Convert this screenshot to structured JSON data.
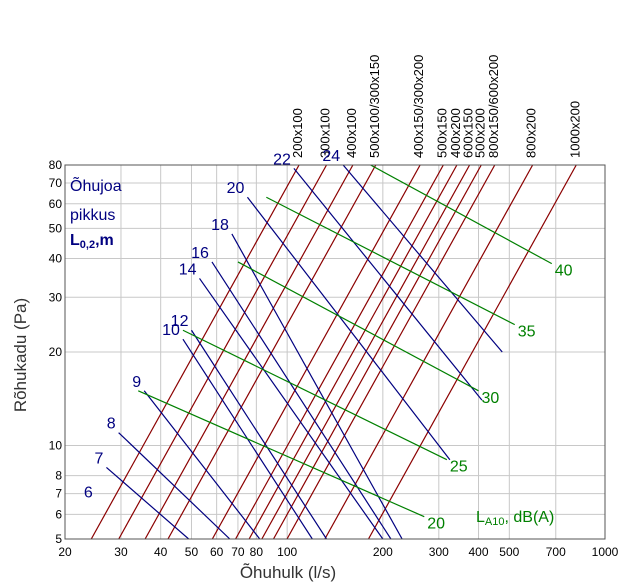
{
  "chart_data": {
    "type": "line",
    "xlabel": "Õhuhulk (l/s)",
    "ylabel": "Rõhukadu  (Pa)",
    "x_scale": "log",
    "y_scale": "log",
    "xlim": [
      20,
      1000
    ],
    "ylim": [
      5,
      80
    ],
    "grid": true,
    "x_ticks": [
      20,
      30,
      40,
      50,
      60,
      70,
      80,
      100,
      200,
      300,
      400,
      500,
      700,
      1000
    ],
    "x_tick_labels": [
      "20",
      "30",
      "40",
      "50",
      "60",
      "70",
      "80",
      "100",
      "200",
      "300",
      "400",
      "500",
      "700",
      "1000"
    ],
    "y_ticks": [
      5,
      6,
      7,
      8,
      10,
      20,
      30,
      40,
      50,
      60,
      70,
      80
    ],
    "y_tick_labels": [
      "5",
      "6",
      "7",
      "8",
      "10",
      "20",
      "30",
      "40",
      "50",
      "60",
      "70",
      "80"
    ],
    "colors": {
      "duct": "#8b0000",
      "length": "#000080",
      "noise": "#008000",
      "grid": "#c8c8c8"
    },
    "duct_sizes": [
      {
        "label": "200x100",
        "x": 109,
        "y": 80
      },
      {
        "label": "300x100",
        "x": 133,
        "y": 80
      },
      {
        "label": "400x100",
        "x": 161,
        "y": 80
      },
      {
        "label": "500x100/300x150",
        "x": 190,
        "y": 80
      },
      {
        "label": "400x150/300x200",
        "x": 262,
        "y": 80
      },
      {
        "label": "500x150",
        "x": 310,
        "y": 80
      },
      {
        "label": "400x200",
        "x": 342,
        "y": 80
      },
      {
        "label": "600x150",
        "x": 375,
        "y": 80
      },
      {
        "label": "500x200",
        "x": 408,
        "y": 80
      },
      {
        "label": "800x150/600x200",
        "x": 450,
        "y": 80
      },
      {
        "label": "800x200",
        "x": 592,
        "y": 80
      },
      {
        "label": "1000x200",
        "x": 812,
        "y": 80
      }
    ],
    "length_lines": [
      {
        "label": "6",
        "x": 25,
        "y": 6.6,
        "x_end": 25,
        "y_end": 6.6
      },
      {
        "label": "7",
        "x": 27,
        "y": 8.5,
        "x_end": 49,
        "y_end": 5
      },
      {
        "label": "8",
        "x": 29.5,
        "y": 11,
        "x_end": 66,
        "y_end": 5
      },
      {
        "label": "9",
        "x": 35.5,
        "y": 15,
        "x_end": 82,
        "y_end": 5
      },
      {
        "label": "10",
        "x": 47,
        "y": 22,
        "x_end": 120,
        "y_end": 5
      },
      {
        "label": "12",
        "x": 50,
        "y": 23.5,
        "x_end": 133,
        "y_end": 5
      },
      {
        "label": "14",
        "x": 53,
        "y": 34.5,
        "x_end": 200,
        "y_end": 5
      },
      {
        "label": "16",
        "x": 58,
        "y": 39,
        "x_end": 212,
        "y_end": 5
      },
      {
        "label": "18",
        "x": 67,
        "y": 48,
        "x_end": 230,
        "y_end": 5
      },
      {
        "label": "20",
        "x": 75,
        "y": 63,
        "x_end": 325,
        "y_end": 9
      },
      {
        "label": "22",
        "x": 105,
        "y": 78,
        "x_end": 410,
        "y_end": 14
      },
      {
        "label": "24",
        "x": 150,
        "y": 80,
        "x_end": 475,
        "y_end": 20
      }
    ],
    "noise_lines": [
      {
        "label": "20",
        "x": 34,
        "y": 15,
        "x_end": 270,
        "y_end": 5.9
      },
      {
        "label": "25",
        "x": 47,
        "y": 23.5,
        "x_end": 318,
        "y_end": 9
      },
      {
        "label": "30",
        "x": 70,
        "y": 39,
        "x_end": 400,
        "y_end": 15
      },
      {
        "label": "35",
        "x": 86,
        "y": 63,
        "x_end": 520,
        "y_end": 24.5
      },
      {
        "label": "40",
        "x": 183,
        "y": 80,
        "x_end": 680,
        "y_end": 38.5
      }
    ],
    "legend": {
      "title_lines": [
        "Õhujoa",
        "pikkus"
      ],
      "title_bold": "L0,2,m",
      "noise_label": "LA10, dB(A)"
    }
  }
}
